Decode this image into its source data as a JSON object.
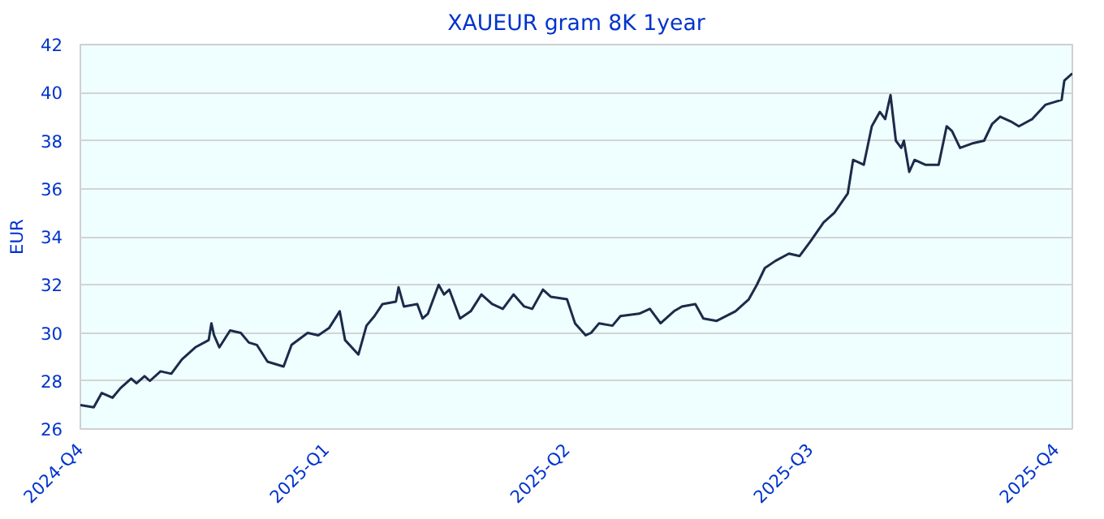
{
  "chart_data": {
    "type": "line",
    "title": "XAUEUR gram 8K 1year",
    "ylabel": "EUR",
    "xlim": [
      "2024-10-01",
      "2025-10-07"
    ],
    "ylim": [
      26,
      42
    ],
    "xticks": [
      {
        "value": "2024-10-01",
        "label": "2024-Q4"
      },
      {
        "value": "2025-01-01",
        "label": "2025-Q1"
      },
      {
        "value": "2025-04-01",
        "label": "2025-Q2"
      },
      {
        "value": "2025-07-01",
        "label": "2025-Q3"
      },
      {
        "value": "2025-10-01",
        "label": "2025-Q4"
      }
    ],
    "yticks": [
      26,
      28,
      30,
      32,
      34,
      36,
      38,
      40,
      42
    ],
    "grid": "y",
    "marker": "none",
    "line_style": "solid",
    "series": [
      {
        "color": "#1a2b4a",
        "x": [
          "2024-10-01",
          "2024-10-06",
          "2024-10-09",
          "2024-10-13",
          "2024-10-16",
          "2024-10-20",
          "2024-10-22",
          "2024-10-25",
          "2024-10-27",
          "2024-10-31",
          "2024-11-04",
          "2024-11-08",
          "2024-11-13",
          "2024-11-18",
          "2024-11-19",
          "2024-11-20",
          "2024-11-22",
          "2024-11-26",
          "2024-11-30",
          "2024-12-03",
          "2024-12-06",
          "2024-12-10",
          "2024-12-16",
          "2024-12-19",
          "2024-12-25",
          "2024-12-29",
          "2025-01-02",
          "2025-01-06",
          "2025-01-08",
          "2025-01-13",
          "2025-01-16",
          "2025-01-19",
          "2025-01-22",
          "2025-01-27",
          "2025-01-28",
          "2025-01-30",
          "2025-02-04",
          "2025-02-06",
          "2025-02-08",
          "2025-02-12",
          "2025-02-14",
          "2025-02-16",
          "2025-02-20",
          "2025-02-24",
          "2025-02-28",
          "2025-03-04",
          "2025-03-08",
          "2025-03-12",
          "2025-03-16",
          "2025-03-19",
          "2025-03-23",
          "2025-03-26",
          "2025-04-01",
          "2025-04-04",
          "2025-04-08",
          "2025-04-10",
          "2025-04-13",
          "2025-04-18",
          "2025-04-21",
          "2025-04-28",
          "2025-05-02",
          "2025-05-06",
          "2025-05-11",
          "2025-05-14",
          "2025-05-19",
          "2025-05-22",
          "2025-05-27",
          "2025-06-03",
          "2025-06-08",
          "2025-06-11",
          "2025-06-14",
          "2025-06-18",
          "2025-06-23",
          "2025-06-27",
          "2025-07-01",
          "2025-07-06",
          "2025-07-10",
          "2025-07-15",
          "2025-07-17",
          "2025-07-21",
          "2025-07-24",
          "2025-07-27",
          "2025-07-29",
          "2025-07-31",
          "2025-08-02",
          "2025-08-04",
          "2025-08-05",
          "2025-08-07",
          "2025-08-09",
          "2025-08-13",
          "2025-08-18",
          "2025-08-21",
          "2025-08-23",
          "2025-08-26",
          "2025-08-31",
          "2025-09-04",
          "2025-09-07",
          "2025-09-10",
          "2025-09-14",
          "2025-09-17",
          "2025-09-22",
          "2025-09-27",
          "2025-10-03",
          "2025-10-04",
          "2025-10-07"
        ],
        "values": [
          27.0,
          26.9,
          27.5,
          27.3,
          27.7,
          28.1,
          27.9,
          28.2,
          28.0,
          28.4,
          28.3,
          28.9,
          29.4,
          29.7,
          30.4,
          29.9,
          29.4,
          30.1,
          30.0,
          29.6,
          29.5,
          28.8,
          28.6,
          29.5,
          30.0,
          29.9,
          30.2,
          30.9,
          29.7,
          29.1,
          30.3,
          30.7,
          31.2,
          31.3,
          31.9,
          31.1,
          31.2,
          30.6,
          30.8,
          32.0,
          31.6,
          31.8,
          30.6,
          30.9,
          31.6,
          31.2,
          31.0,
          31.6,
          31.1,
          31.0,
          31.8,
          31.5,
          31.4,
          30.4,
          29.9,
          30.0,
          30.4,
          30.3,
          30.7,
          30.8,
          31.0,
          30.4,
          30.9,
          31.1,
          31.2,
          30.6,
          30.5,
          30.9,
          31.4,
          32.0,
          32.7,
          33.0,
          33.3,
          33.2,
          33.8,
          34.6,
          35.0,
          35.8,
          37.2,
          37.0,
          38.6,
          39.2,
          38.9,
          39.9,
          38.0,
          37.7,
          38.0,
          36.7,
          37.2,
          37.0,
          37.0,
          38.6,
          38.4,
          37.7,
          37.9,
          38.0,
          38.7,
          39.0,
          38.8,
          38.6,
          38.9,
          39.5,
          39.7,
          40.5,
          40.8
        ]
      }
    ]
  }
}
